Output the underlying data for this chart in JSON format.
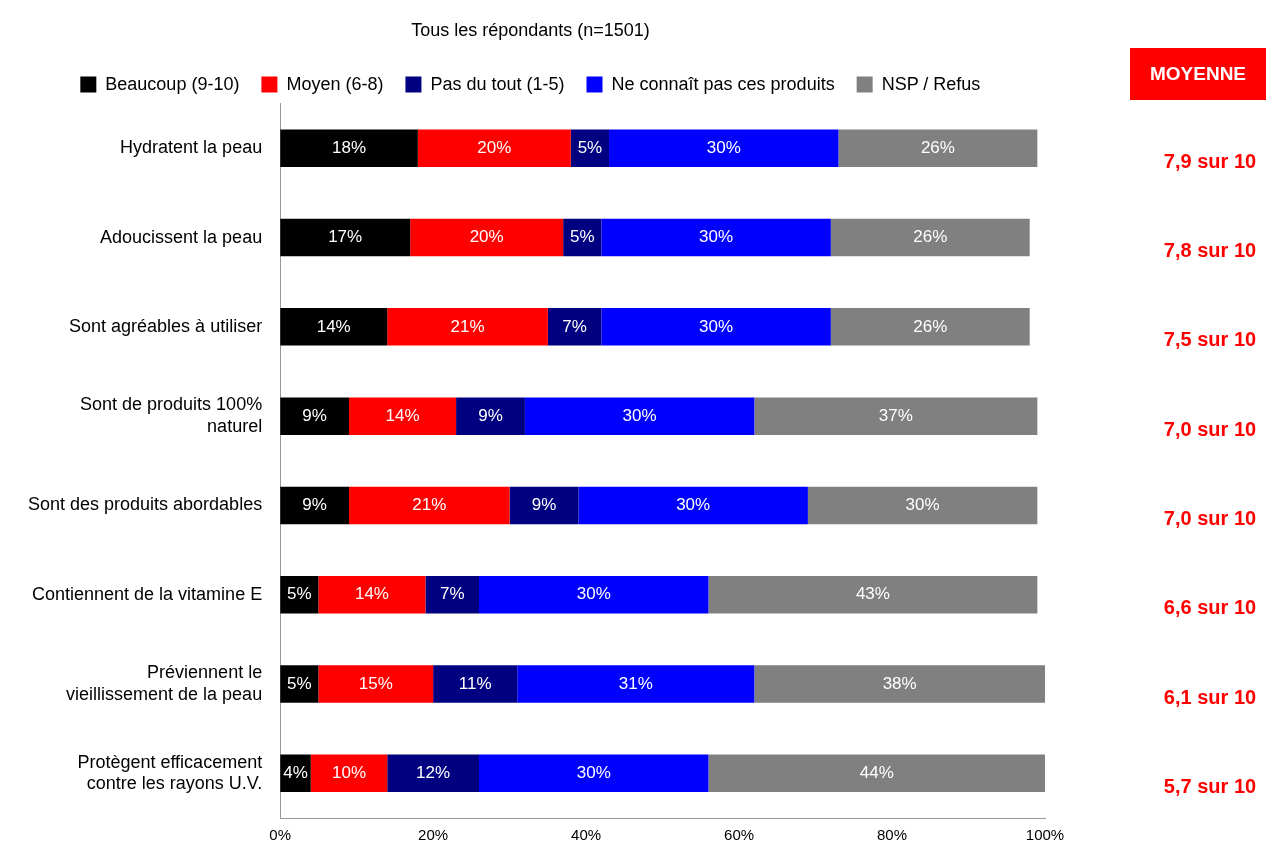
{
  "chart_data": {
    "type": "bar",
    "orientation": "horizontal",
    "stacked": true,
    "title": "Tous les répondants (n=1501)",
    "categories": [
      "Hydratent la peau",
      "Adoucissent la peau",
      "Sont agréables à utiliser",
      "Sont de produits 100% naturel",
      "Sont des produits abordables",
      "Contiennent de la vitamine E",
      "Préviennent le vieillissement de la peau",
      "Protègent efficacement contre les rayons U.V."
    ],
    "series": [
      {
        "name": "Beaucoup (9-10)",
        "color": "#000000",
        "values": [
          18,
          17,
          14,
          9,
          9,
          5,
          5,
          4
        ],
        "value_labels": [
          "18%",
          "17%",
          "14%",
          "9%",
          "9%",
          "5%",
          "5%",
          "4%"
        ]
      },
      {
        "name": "Moyen (6-8)",
        "color": "#ff0000",
        "values": [
          20,
          20,
          21,
          14,
          21,
          14,
          15,
          10
        ],
        "value_labels": [
          "20%",
          "20%",
          "21%",
          "14%",
          "21%",
          "14%",
          "15%",
          "10%"
        ]
      },
      {
        "name": "Pas du tout (1-5)",
        "color": "#000080",
        "values": [
          5,
          5,
          7,
          9,
          9,
          7,
          11,
          12
        ],
        "value_labels": [
          "5%",
          "5%",
          "7%",
          "9%",
          "9%",
          "7%",
          "11%",
          "12%"
        ]
      },
      {
        "name": "Ne connaît pas ces produits",
        "color": "#0000ff",
        "values": [
          30,
          30,
          30,
          30,
          30,
          30,
          31,
          30
        ],
        "value_labels": [
          "30%",
          "30%",
          "30%",
          "30%",
          "30%",
          "30%",
          "31%",
          "30%"
        ]
      },
      {
        "name": "NSP / Refus",
        "color": "#808080",
        "values": [
          26,
          26,
          26,
          37,
          30,
          43,
          38,
          44
        ],
        "value_labels": [
          "26%",
          "26%",
          "26%",
          "37%",
          "30%",
          "43%",
          "38%",
          "44%"
        ]
      }
    ],
    "xlim": [
      0,
      100
    ],
    "xticks": [
      {
        "value": 0,
        "label": "0%"
      },
      {
        "value": 20,
        "label": "20%"
      },
      {
        "value": 40,
        "label": "40%"
      },
      {
        "value": 60,
        "label": "60%"
      },
      {
        "value": 80,
        "label": "80%"
      },
      {
        "value": 100,
        "label": "100%"
      }
    ],
    "legend": "top",
    "grid": false,
    "annotations": [
      "MOYENNE",
      "7,9 sur 10",
      "7,8 sur 10",
      "7,5 sur 10",
      "7,0 sur 10",
      "7,0 sur 10",
      "6,6 sur 10",
      "6,1 sur 10",
      "5,7 sur 10"
    ]
  }
}
